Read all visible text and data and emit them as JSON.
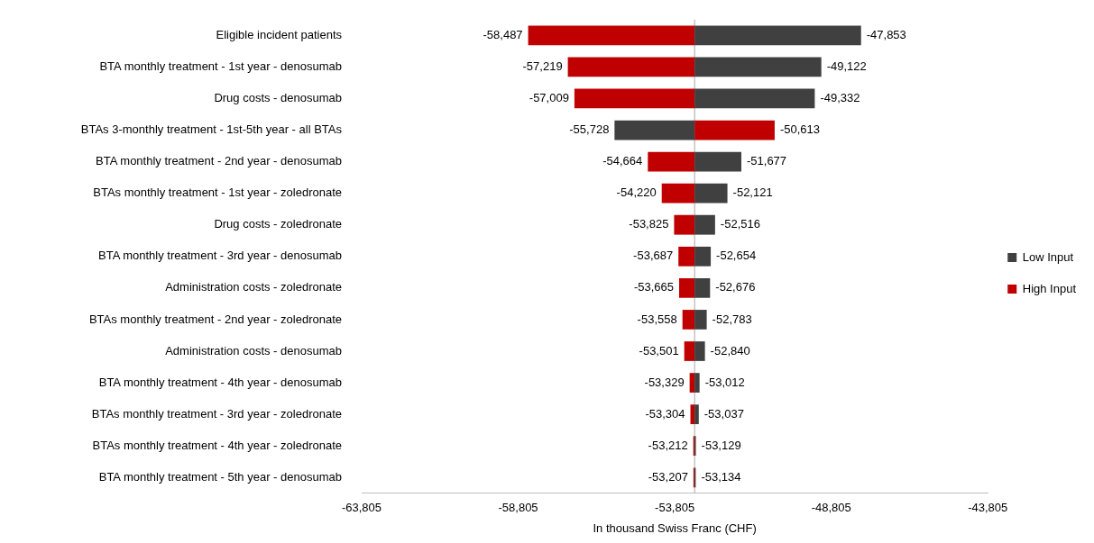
{
  "chart_data": {
    "type": "bar",
    "orientation": "horizontal",
    "xlabel": "In thousand Swiss Franc (CHF)",
    "categories": [
      "Eligible incident patients",
      "BTA monthly treatment - 1st year - denosumab",
      "Drug costs - denosumab",
      "BTAs 3-monthly treatment - 1st-5th year - all BTAs",
      "BTA monthly treatment - 2nd year - denosumab",
      "BTAs monthly treatment - 1st year - zoledronate",
      "Drug costs - zoledronate",
      "BTA monthly treatment - 3rd year - denosumab",
      "Administration costs - zoledronate",
      "BTAs monthly treatment - 2nd year - zoledronate",
      "Administration costs - denosumab",
      "BTA monthly treatment - 4th year - denosumab",
      "BTAs monthly treatment - 3rd year - zoledronate",
      "BTAs monthly treatment - 4th year - zoledronate",
      "BTA monthly treatment - 5th year - denosumab"
    ],
    "series": [
      {
        "name": "Low Input",
        "color": "#404040",
        "base": [
          -53170,
          -53170,
          -53170,
          -53170,
          -53170,
          -53170,
          -53170,
          -53170,
          -53170,
          -53170,
          -53170,
          -53170,
          -53170,
          -53170,
          -53170
        ],
        "values": [
          5317,
          4048,
          3838,
          -2558,
          1493,
          1049,
          654,
          516,
          494,
          387,
          330,
          158,
          133,
          41,
          36
        ],
        "value_labels": [
          "-47,853",
          "-49,122",
          "-49,332",
          "-55,728",
          "-51,677",
          "-52,121",
          "-52,516",
          "-52,654",
          "-52,676",
          "-52,783",
          "-52,840",
          "-53,012",
          "-53,037",
          "-53,129",
          "-53,134"
        ]
      },
      {
        "name": "High Input",
        "color": "#c00000",
        "base": [
          -53170,
          -53170,
          -53170,
          -53170,
          -53170,
          -53170,
          -53170,
          -53170,
          -53170,
          -53170,
          -53170,
          -53170,
          -53170,
          -53170,
          -53170
        ],
        "values": [
          -5317,
          -4049,
          -3839,
          2557,
          -1494,
          -1050,
          -655,
          -517,
          -495,
          -388,
          -331,
          -159,
          -134,
          -42,
          -37
        ],
        "value_labels": [
          "-58,487",
          "-57,219",
          "-57,009",
          "-50,613",
          "-54,664",
          "-54,220",
          "-53,825",
          "-53,687",
          "-53,665",
          "-53,558",
          "-53,501",
          "-53,329",
          "-53,304",
          "-53,212",
          "-53,207"
        ]
      }
    ],
    "xlim": [
      -63805,
      -43805
    ],
    "xticks": [
      {
        "value": -63805,
        "label": "-63,805"
      },
      {
        "value": -58805,
        "label": "-58,805"
      },
      {
        "value": -53805,
        "label": "-53,805"
      },
      {
        "value": -48805,
        "label": "-48,805"
      },
      {
        "value": -43805,
        "label": "-43,805"
      }
    ],
    "ref_lines": [
      {
        "axis": "x",
        "value": -53170,
        "color": "#a6a6a6"
      }
    ],
    "legend": "right",
    "grid": false
  }
}
